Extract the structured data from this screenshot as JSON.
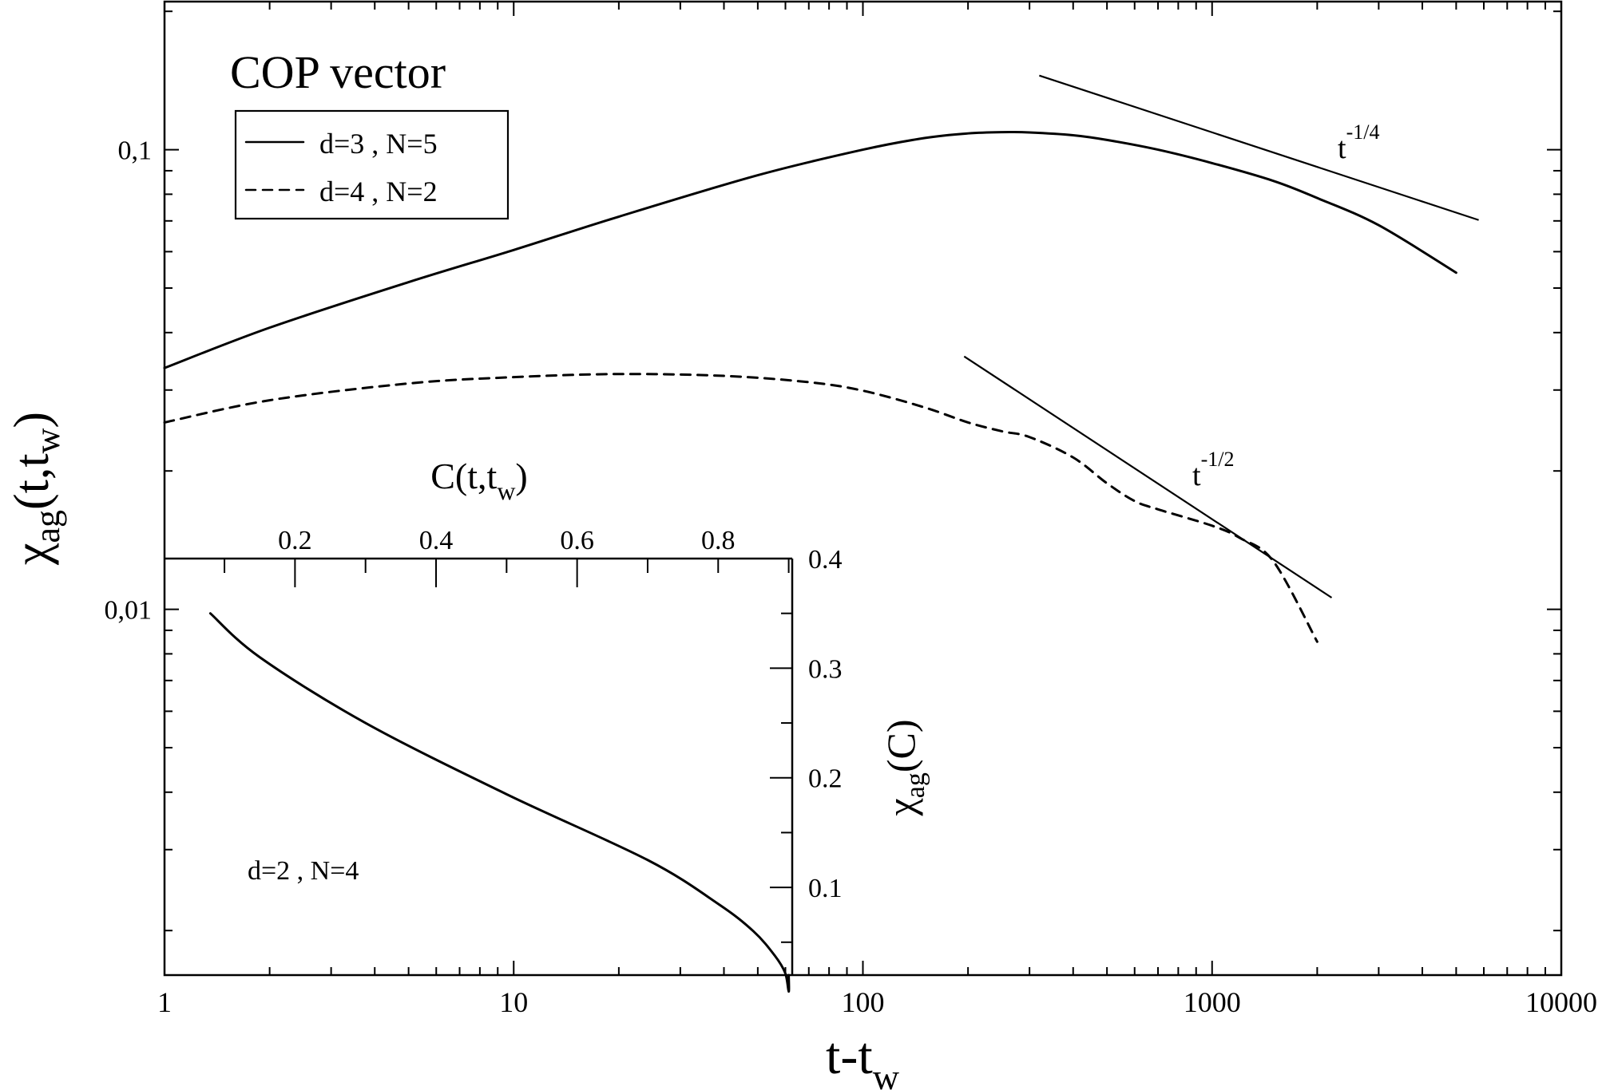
{
  "chart_data": [
    {
      "type": "line",
      "title": "COP vector",
      "xlabel_main": "t-t",
      "xlabel_sub": "w",
      "ylabel_chi": "χ",
      "ylabel_sub": "ag",
      "ylabel_rest": "(t,t",
      "ylabel_sub2": "w",
      "ylabel_close": ")",
      "x_scale": "log",
      "y_scale": "log",
      "xlim": [
        1,
        10000
      ],
      "ylim": [
        0.0016,
        0.21
      ],
      "x_tick_labels": [
        {
          "value": 1,
          "label": "1"
        },
        {
          "value": 10,
          "label": "10"
        },
        {
          "value": 100,
          "label": "100"
        },
        {
          "value": 1000,
          "label": "1000"
        },
        {
          "value": 10000,
          "label": "10000"
        }
      ],
      "y_tick_labels": [
        {
          "value": 0.1,
          "label": "0,1"
        },
        {
          "value": 0.01,
          "label": "0,01"
        }
      ],
      "legend_position": "top-left",
      "series": [
        {
          "name": "d=3 , N=5",
          "style": "solid",
          "x": [
            1,
            2,
            5,
            10,
            20,
            50,
            100,
            150,
            200,
            250,
            300,
            400,
            500,
            700,
            1000,
            1500,
            2000,
            3000,
            5000
          ],
          "y": [
            0.0335,
            0.041,
            0.0515,
            0.0605,
            0.0715,
            0.088,
            0.1,
            0.106,
            0.1085,
            0.1092,
            0.109,
            0.1075,
            0.105,
            0.1,
            0.0935,
            0.0855,
            0.0785,
            0.0685,
            0.054
          ]
        },
        {
          "name": "d=4 , N=2",
          "style": "dashed",
          "x": [
            1,
            2,
            5,
            10,
            20,
            40,
            70,
            100,
            150,
            200,
            250,
            300,
            400,
            500,
            600,
            700,
            1000,
            1200,
            1500,
            2000
          ],
          "y": [
            0.0255,
            0.0285,
            0.031,
            0.032,
            0.0325,
            0.0322,
            0.0312,
            0.0299,
            0.0275,
            0.0255,
            0.0244,
            0.0237,
            0.0214,
            0.0188,
            0.0172,
            0.0165,
            0.0152,
            0.0143,
            0.0127,
            0.0085
          ]
        }
      ],
      "guide_lines": [
        {
          "label": "t",
          "exponent": "-1/4",
          "x": [
            320,
            5800
          ],
          "y": [
            0.145,
            0.0703
          ]
        },
        {
          "label": "t",
          "exponent": "-1/2",
          "x": [
            195,
            2200
          ],
          "y": [
            0.0355,
            0.0106
          ]
        }
      ]
    },
    {
      "type": "line",
      "name": "inset",
      "xlabel_main": "C(t,t",
      "xlabel_sub": "w",
      "xlabel_close": ")",
      "ylabel_chi": "χ",
      "ylabel_sub": "ag",
      "ylabel_rest": "(C)",
      "annotation": "d=2 , N=4",
      "xlim": [
        0.015,
        0.905
      ],
      "ylim": [
        0.02,
        0.4
      ],
      "x_ticks": [
        {
          "value": 0.2,
          "label": "0.2"
        },
        {
          "value": 0.4,
          "label": "0.4"
        },
        {
          "value": 0.6,
          "label": "0.6"
        },
        {
          "value": 0.8,
          "label": "0.8"
        }
      ],
      "y_ticks": [
        {
          "value": 0.1,
          "label": "0.1"
        },
        {
          "value": 0.2,
          "label": "0.2"
        },
        {
          "value": 0.3,
          "label": "0.3"
        },
        {
          "value": 0.4,
          "label": "0.4"
        }
      ],
      "series": [
        {
          "name": "d=2 , N=4",
          "x": [
            0.08,
            0.15,
            0.3,
            0.5,
            0.7,
            0.8,
            0.85,
            0.88,
            0.895,
            0.9,
            0.9
          ],
          "y": [
            0.35,
            0.31,
            0.25,
            0.185,
            0.125,
            0.085,
            0.06,
            0.038,
            0.022,
            0.005,
            0.02
          ]
        }
      ]
    }
  ]
}
